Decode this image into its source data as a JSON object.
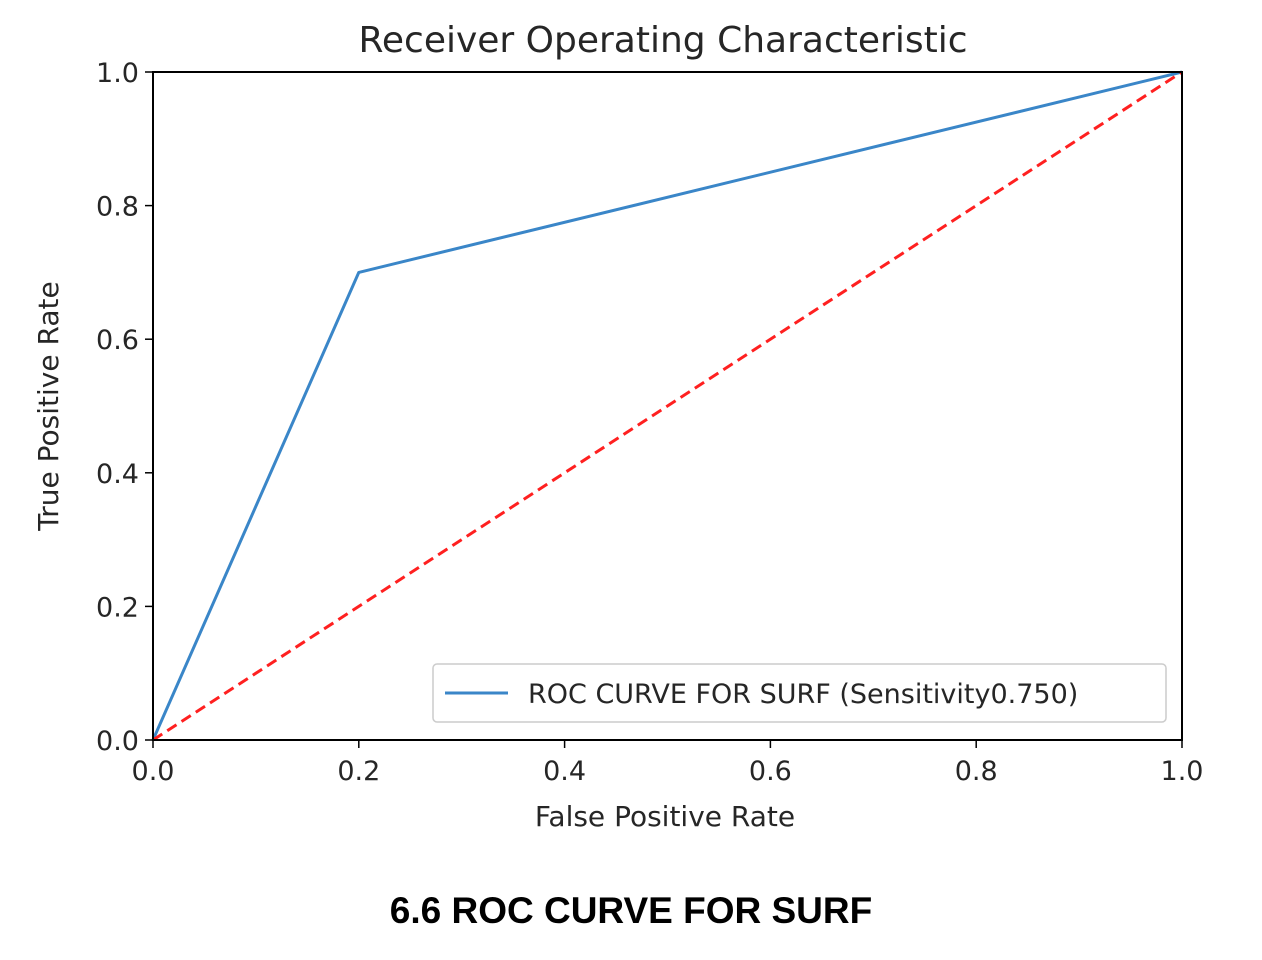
{
  "caption": "6.6 ROC CURVE FOR SURF",
  "chart_data": {
    "type": "line",
    "title": "Receiver Operating Characteristic",
    "xlabel": "False Positive Rate",
    "ylabel": "True Positive Rate",
    "xlim": [
      0,
      1
    ],
    "ylim": [
      0,
      1
    ],
    "xticks": [
      0.0,
      0.2,
      0.4,
      0.6,
      0.8,
      1.0
    ],
    "yticks": [
      0.0,
      0.2,
      0.4,
      0.6,
      0.8,
      1.0
    ],
    "xtick_labels": [
      "0.0",
      "0.2",
      "0.4",
      "0.6",
      "0.8",
      "1.0"
    ],
    "ytick_labels": [
      "0.0",
      "0.2",
      "0.4",
      "0.6",
      "0.8",
      "1.0"
    ],
    "grid": false,
    "legend_position": "lower-right",
    "series": [
      {
        "name": "ROC CURVE FOR SURF (Sensitivity0.750)",
        "x": [
          0.0,
          0.2,
          1.0
        ],
        "y": [
          0.0,
          0.7,
          1.0
        ],
        "color": "#3a86c8",
        "style": "solid",
        "in_legend": true
      },
      {
        "x": [
          0.0,
          1.0
        ],
        "y": [
          0.0,
          1.0
        ],
        "color": "#ff2020",
        "style": "dashed",
        "in_legend": false
      }
    ]
  }
}
